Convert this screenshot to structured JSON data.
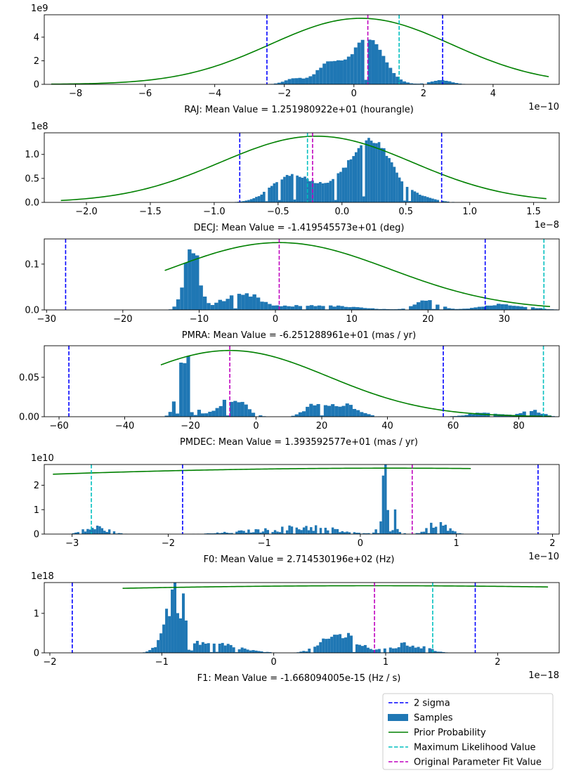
{
  "legend": {
    "placement": "lower-right (below last panel)",
    "entries": [
      {
        "label": "2 sigma",
        "kind": "dash",
        "color": "#0000ff"
      },
      {
        "label": "Samples",
        "kind": "patch",
        "color": "#1f77b4"
      },
      {
        "label": "Prior Probability",
        "kind": "line",
        "color": "#008000"
      },
      {
        "label": "Maximum Likelihood Value",
        "kind": "dash",
        "color": "#00bfbf"
      },
      {
        "label": "Original Parameter Fit Value",
        "kind": "dash",
        "color": "#bf00bf"
      }
    ]
  },
  "chart_data": [
    {
      "type": "bar",
      "xlabel": "RAJ: Mean Value = 1.251980922e+01 (hourangle)",
      "x_offset_label": "1e−10",
      "y_offset_label": "1e9",
      "xlim": [
        -8.9,
        5.9
      ],
      "ylim": [
        0,
        5.9
      ],
      "xticks": [
        -8,
        -6,
        -4,
        -2,
        0,
        2,
        4
      ],
      "yticks": [
        0,
        2,
        4
      ],
      "hist": {
        "start": -5.8,
        "width": 0.1,
        "centers": [
          -1.7,
          -0.7,
          0.4,
          2.5
        ],
        "sigmas": [
          0.28,
          0.35,
          0.45,
          0.3
        ],
        "amps": [
          0.5,
          1.8,
          3.9,
          0.35
        ],
        "noise": 0.05
      },
      "prior": {
        "type": "gaussian",
        "mu": 0.2,
        "sigma": 2.6,
        "peak": 5.6,
        "range": [
          -8.7,
          5.6
        ]
      },
      "vlines": [
        {
          "kind": "two_sigma",
          "x": -2.5,
          "color": "#0000ff"
        },
        {
          "kind": "two_sigma",
          "x": 2.55,
          "color": "#0000ff"
        },
        {
          "kind": "max_likelihood",
          "x": 1.3,
          "color": "#00bfbf"
        },
        {
          "kind": "original_fit",
          "x": 0.4,
          "color": "#bf00bf"
        }
      ]
    },
    {
      "type": "bar",
      "xlabel": "DECJ: Mean Value = -1.419545573e+01 (deg)",
      "x_offset_label": "1e−8",
      "y_offset_label": "1e8",
      "xlim": [
        -2.33,
        1.7
      ],
      "ylim": [
        0,
        1.45
      ],
      "xticks": [
        -2.0,
        -1.5,
        -1.0,
        -0.5,
        0.0,
        0.5,
        1.0,
        1.5
      ],
      "yticks": [
        0.0,
        0.5,
        1.0
      ],
      "hist": {
        "start": -1.8,
        "width": 0.02,
        "centers": [
          -0.4,
          0.25,
          0.05,
          0.6
        ],
        "sigmas": [
          0.15,
          0.15,
          0.2,
          0.12
        ],
        "amps": [
          0.55,
          1.05,
          0.4,
          0.1
        ],
        "noise": 0.06
      },
      "prior": {
        "type": "gaussian",
        "mu": -0.2,
        "sigma": 0.75,
        "peak": 1.38,
        "range": [
          -2.2,
          1.6
        ]
      },
      "vlines": [
        {
          "kind": "two_sigma",
          "x": -0.8,
          "color": "#0000ff"
        },
        {
          "kind": "two_sigma",
          "x": 0.78,
          "color": "#0000ff"
        },
        {
          "kind": "max_likelihood",
          "x": -0.27,
          "color": "#00bfbf"
        },
        {
          "kind": "original_fit",
          "x": -0.23,
          "color": "#bf00bf"
        }
      ]
    },
    {
      "type": "bar",
      "xlabel": "PMRA: Mean Value = -6.251288961e+01 (mas / yr)",
      "x_offset_label": "",
      "y_offset_label": "",
      "xlim": [
        -30.3,
        37.2
      ],
      "ylim": [
        0,
        0.155
      ],
      "xticks": [
        -30,
        -20,
        -10,
        0,
        10,
        20,
        30
      ],
      "yticks": [
        0.0,
        0.1
      ],
      "hist": {
        "start": -15,
        "width": 0.5,
        "centers": [
          -11,
          -6,
          -3,
          5,
          20,
          30
        ],
        "sigmas": [
          0.9,
          2,
          1.5,
          5,
          1.5,
          3
        ],
        "amps": [
          0.14,
          0.022,
          0.02,
          0.01,
          0.02,
          0.012
        ],
        "noise": 0.2
      },
      "prior": {
        "type": "gaussian",
        "mu": 0.5,
        "sigma": 14.5,
        "peak": 0.147,
        "range": [
          -14.5,
          36
        ]
      },
      "vlines": [
        {
          "kind": "two_sigma",
          "x": -27.5,
          "color": "#0000ff"
        },
        {
          "kind": "two_sigma",
          "x": 27.5,
          "color": "#0000ff"
        },
        {
          "kind": "max_likelihood",
          "x": 35.2,
          "color": "#00bfbf"
        },
        {
          "kind": "original_fit",
          "x": 0.5,
          "color": "#bf00bf"
        }
      ]
    },
    {
      "type": "bar",
      "xlabel": "PMDEC: Mean Value = 1.393592577e+01 (mas / yr)",
      "x_offset_label": "",
      "y_offset_label": "",
      "xlim": [
        -64.5,
        92.3
      ],
      "ylim": [
        0,
        0.09
      ],
      "xticks": [
        -60,
        -40,
        -20,
        0,
        20,
        40,
        60,
        80
      ],
      "yticks": [
        0.0,
        0.05
      ],
      "hist": {
        "start": -30,
        "width": 1.1,
        "centers": [
          -21.5,
          -10,
          -5,
          18,
          27,
          70,
          84
        ],
        "sigmas": [
          2,
          3,
          3,
          3,
          4,
          5,
          3
        ],
        "amps": [
          0.085,
          0.014,
          0.015,
          0.015,
          0.016,
          0.005,
          0.008
        ],
        "noise": 0.2
      },
      "prior": {
        "type": "gaussian",
        "mu": -8,
        "sigma": 30,
        "peak": 0.084,
        "range": [
          -29,
          90
        ]
      },
      "vlines": [
        {
          "kind": "two_sigma",
          "x": -57,
          "color": "#0000ff"
        },
        {
          "kind": "two_sigma",
          "x": 57,
          "color": "#0000ff"
        },
        {
          "kind": "max_likelihood",
          "x": 87.5,
          "color": "#00bfbf"
        },
        {
          "kind": "original_fit",
          "x": -8,
          "color": "#bf00bf"
        }
      ]
    },
    {
      "type": "bar",
      "xlabel": "F0: Mean Value = 2.714530196e+02 (Hz)",
      "x_offset_label": "1e−10",
      "y_offset_label": "1e10",
      "xlim": [
        -3.29,
        2.07
      ],
      "ylim": [
        0,
        2.85
      ],
      "xticks": [
        -3,
        -2,
        -1,
        0,
        1,
        2
      ],
      "yticks": [
        0,
        1,
        2
      ],
      "hist": {
        "start": -3.0,
        "width": 0.025,
        "centers": [
          -2.75,
          -1.05,
          -0.5,
          0.28,
          0.8
        ],
        "sigmas": [
          0.12,
          0.3,
          0.25,
          0.06,
          0.1
        ],
        "amps": [
          0.25,
          0.12,
          0.25,
          2.2,
          0.4
        ],
        "noise": 0.6
      },
      "prior": {
        "type": "gaussian",
        "mu": 0.3,
        "sigma": 8,
        "peak": 2.7,
        "range": [
          -3.2,
          1.15
        ]
      },
      "vlines": [
        {
          "kind": "two_sigma",
          "x": -1.85,
          "color": "#0000ff"
        },
        {
          "kind": "two_sigma",
          "x": 1.85,
          "color": "#0000ff"
        },
        {
          "kind": "max_likelihood",
          "x": -2.8,
          "color": "#00bfbf"
        },
        {
          "kind": "original_fit",
          "x": 0.54,
          "color": "#bf00bf"
        }
      ]
    },
    {
      "type": "bar",
      "xlabel": "F1: Mean Value = -1.668094005e-15 (Hz / s)",
      "x_offset_label": "1e−18",
      "y_offset_label": "1e18",
      "xlim": [
        -2.05,
        2.55
      ],
      "ylim": [
        0,
        1.78
      ],
      "xticks": [
        -2,
        -1,
        0,
        1,
        2
      ],
      "yticks": [
        0,
        1
      ],
      "hist": {
        "start": -1.22,
        "width": 0.025,
        "centers": [
          -0.88,
          -0.5,
          0.6,
          1.2
        ],
        "sigmas": [
          0.09,
          0.2,
          0.15,
          0.15
        ],
        "amps": [
          1.45,
          0.2,
          0.45,
          0.2
        ],
        "noise": 0.4
      },
      "prior": {
        "type": "gaussian",
        "mu": 0.9,
        "sigma": 8,
        "peak": 1.7,
        "range": [
          -1.35,
          2.45
        ]
      },
      "vlines": [
        {
          "kind": "two_sigma",
          "x": -1.8,
          "color": "#0000ff"
        },
        {
          "kind": "two_sigma",
          "x": 1.8,
          "color": "#0000ff"
        },
        {
          "kind": "max_likelihood",
          "x": 1.42,
          "color": "#00bfbf"
        },
        {
          "kind": "original_fit",
          "x": 0.9,
          "color": "#bf00bf"
        }
      ]
    }
  ]
}
